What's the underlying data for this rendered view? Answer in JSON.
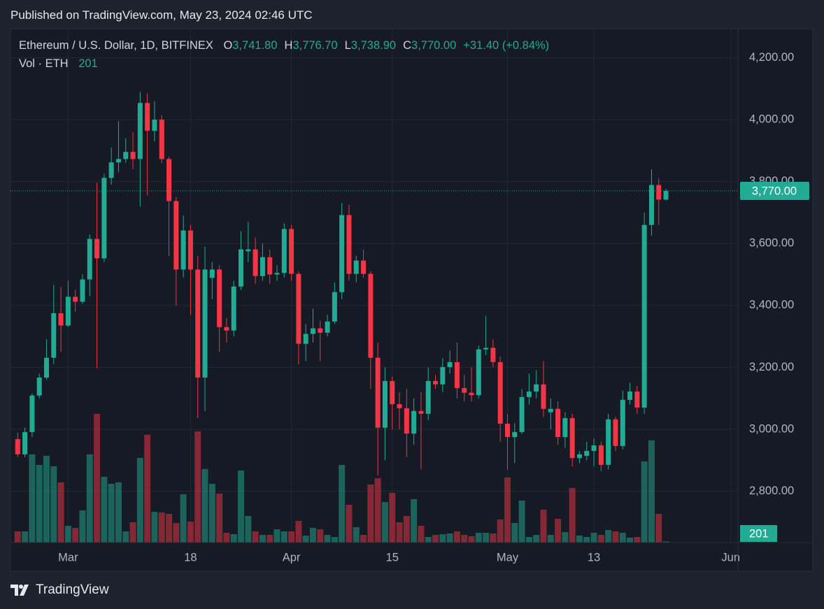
{
  "header": {
    "published": "Published on TradingView.com, May 23, 2024 02:46 UTC"
  },
  "footer": {
    "brand": "TradingView"
  },
  "chart_data": {
    "type": "candlestick",
    "title": "Ethereum / U.S. Dollar, 1D, BITFINEX",
    "legend": [
      {
        "label": "O",
        "value": "3,741.80"
      },
      {
        "label": "H",
        "value": "3,776.70"
      },
      {
        "label": "L",
        "value": "3,738.90"
      },
      {
        "label": "C",
        "value": "3,770.00"
      }
    ],
    "change": "+31.40 (+0.84%)",
    "last_price_label": "3,770.00",
    "up_color": "#22ab94",
    "down_color": "#f23645",
    "grid": true,
    "x": [
      "2024-02-23",
      "2024-02-24",
      "2024-02-25",
      "2024-02-26",
      "2024-02-27",
      "2024-02-28",
      "2024-02-29",
      "2024-03-01",
      "2024-03-02",
      "2024-03-03",
      "2024-03-04",
      "2024-03-05",
      "2024-03-06",
      "2024-03-07",
      "2024-03-08",
      "2024-03-09",
      "2024-03-10",
      "2024-03-11",
      "2024-03-12",
      "2024-03-13",
      "2024-03-14",
      "2024-03-15",
      "2024-03-16",
      "2024-03-17",
      "2024-03-18",
      "2024-03-19",
      "2024-03-20",
      "2024-03-21",
      "2024-03-22",
      "2024-03-23",
      "2024-03-24",
      "2024-03-25",
      "2024-03-26",
      "2024-03-27",
      "2024-03-28",
      "2024-03-29",
      "2024-03-30",
      "2024-03-31",
      "2024-04-01",
      "2024-04-02",
      "2024-04-03",
      "2024-04-04",
      "2024-04-05",
      "2024-04-06",
      "2024-04-07",
      "2024-04-08",
      "2024-04-09",
      "2024-04-10",
      "2024-04-11",
      "2024-04-12",
      "2024-04-13",
      "2024-04-14",
      "2024-04-15",
      "2024-04-16",
      "2024-04-17",
      "2024-04-18",
      "2024-04-19",
      "2024-04-20",
      "2024-04-21",
      "2024-04-22",
      "2024-04-23",
      "2024-04-24",
      "2024-04-25",
      "2024-04-26",
      "2024-04-27",
      "2024-04-28",
      "2024-04-29",
      "2024-04-30",
      "2024-05-01",
      "2024-05-02",
      "2024-05-03",
      "2024-05-04",
      "2024-05-05",
      "2024-05-06",
      "2024-05-07",
      "2024-05-08",
      "2024-05-09",
      "2024-05-10",
      "2024-05-11",
      "2024-05-12",
      "2024-05-13",
      "2024-05-14",
      "2024-05-15",
      "2024-05-16",
      "2024-05-17",
      "2024-05-18",
      "2024-05-19",
      "2024-05-20",
      "2024-05-21",
      "2024-05-22",
      "2024-05-23"
    ],
    "open": [
      2968,
      2919,
      2991,
      3109,
      3167,
      3231,
      3375,
      3335,
      3428,
      3412,
      3484,
      3615,
      3552,
      3812,
      3862,
      3873,
      3896,
      3873,
      4054,
      3964,
      4000,
      3873,
      3737,
      3516,
      3642,
      3516,
      3167,
      3489,
      3516,
      3330,
      3319,
      3461,
      3575,
      3581,
      3495,
      3556,
      3500,
      3505,
      3647,
      3502,
      3276,
      3308,
      3326,
      3312,
      3348,
      3443,
      3692,
      3502,
      3545,
      3502,
      3231,
      3005,
      3156,
      3081,
      3068,
      2986,
      3059,
      3050,
      3156,
      3145,
      3201,
      3217,
      3133,
      3118,
      3110,
      3258,
      3263,
      3217,
      3018,
      2975,
      2991,
      3104,
      3122,
      3145,
      3055,
      3066,
      2975,
      3036,
      2907,
      2914,
      2930,
      2948,
      2885,
      3032,
      2946,
      3095,
      3122,
      3070,
      3660,
      3789,
      3741.8
    ],
    "high": [
      2990,
      3005,
      3115,
      3180,
      3290,
      3466,
      3460,
      3480,
      3450,
      3500,
      3630,
      3796,
      3825,
      3910,
      3995,
      3940,
      3959,
      4090,
      4085,
      4060,
      4015,
      3880,
      3750,
      3690,
      3660,
      3560,
      3590,
      3540,
      3530,
      3360,
      3480,
      3640,
      3670,
      3620,
      3600,
      3580,
      3530,
      3665,
      3660,
      3510,
      3340,
      3390,
      3350,
      3370,
      3475,
      3730,
      3725,
      3560,
      3580,
      3510,
      3280,
      3200,
      3170,
      3120,
      3130,
      3100,
      3120,
      3200,
      3175,
      3230,
      3255,
      3280,
      3175,
      3200,
      3270,
      3365,
      3290,
      3235,
      3050,
      3020,
      3130,
      3180,
      3190,
      3220,
      3100,
      3090,
      3055,
      3050,
      2930,
      2960,
      2970,
      2960,
      3050,
      3040,
      3125,
      3150,
      3140,
      3700,
      3840,
      3810,
      3776.7
    ],
    "low": [
      2910,
      2910,
      2975,
      3100,
      3160,
      3210,
      3250,
      3330,
      3380,
      3405,
      3430,
      3197,
      3540,
      3790,
      3830,
      3860,
      3840,
      3719,
      3755,
      3930,
      3860,
      3560,
      3400,
      3490,
      3370,
      3036,
      3059,
      3420,
      3250,
      3280,
      3300,
      3450,
      3540,
      3470,
      3480,
      3470,
      3480,
      3490,
      3480,
      3210,
      3220,
      3280,
      3220,
      3300,
      3340,
      3420,
      3480,
      3475,
      3490,
      3130,
      2851,
      2900,
      3000,
      3000,
      2910,
      2950,
      2870,
      3030,
      3130,
      3120,
      3180,
      3100,
      3090,
      3090,
      3100,
      3240,
      3200,
      2960,
      2870,
      2890,
      2985,
      3080,
      3100,
      3040,
      3000,
      2950,
      2940,
      2880,
      2890,
      2900,
      2880,
      2865,
      2870,
      2930,
      2935,
      3080,
      3050,
      3050,
      3625,
      3660,
      3738.9
    ],
    "close": [
      2919,
      2991,
      3109,
      3167,
      3231,
      3375,
      3335,
      3428,
      3412,
      3484,
      3615,
      3552,
      3812,
      3862,
      3873,
      3896,
      3873,
      4054,
      3964,
      4000,
      3873,
      3737,
      3516,
      3642,
      3516,
      3167,
      3516,
      3516,
      3330,
      3319,
      3461,
      3581,
      3581,
      3495,
      3556,
      3500,
      3505,
      3647,
      3502,
      3276,
      3308,
      3326,
      3312,
      3348,
      3443,
      3692,
      3502,
      3545,
      3502,
      3231,
      3005,
      3156,
      3081,
      3068,
      2986,
      3059,
      3050,
      3156,
      3145,
      3201,
      3217,
      3133,
      3118,
      3110,
      3258,
      3263,
      3217,
      3018,
      2975,
      2991,
      3104,
      3122,
      3145,
      3066,
      3066,
      2975,
      3036,
      2907,
      2919,
      2930,
      2948,
      2885,
      3032,
      2946,
      3095,
      3122,
      3070,
      3660,
      3789,
      3741.8,
      3770
    ],
    "volume": {
      "name": "Vol · ETH",
      "vlim": [
        0,
        40000
      ],
      "values": [
        2080,
        2080,
        16380,
        14430,
        16120,
        14170,
        11180,
        3120,
        2730,
        5980,
        16380,
        23920,
        12220,
        10920,
        11180,
        2080,
        3770,
        15730,
        20020,
        5720,
        5590,
        5330,
        3640,
        8970,
        3900,
        20670,
        13650,
        10920,
        9100,
        1820,
        1560,
        13390,
        4940,
        2080,
        1430,
        1430,
        2470,
        2080,
        2080,
        4030,
        1300,
        2730,
        2470,
        1430,
        1040,
        14430,
        7020,
        2860,
        1430,
        10790,
        11960,
        7540,
        9230,
        3770,
        4940,
        8060,
        3120,
        1040,
        1430,
        1560,
        1690,
        2080,
        1430,
        1170,
        1820,
        1820,
        1690,
        4290,
        12090,
        3640,
        7800,
        1040,
        1430,
        6110,
        1430,
        4420,
        1950,
        10140,
        1300,
        1040,
        1820,
        1430,
        2340,
        2080,
        1820,
        910,
        1040,
        15080,
        18980,
        5330,
        201
      ]
    },
    "xlim": [
      "2024-02-22",
      "2024-06-02"
    ],
    "xticks": [
      {
        "value": "2024-03-01",
        "label": "Mar"
      },
      {
        "value": "2024-03-18",
        "label": "18"
      },
      {
        "value": "2024-04-01",
        "label": "Apr"
      },
      {
        "value": "2024-04-15",
        "label": "15"
      },
      {
        "value": "2024-05-01",
        "label": "May"
      },
      {
        "value": "2024-05-13",
        "label": "13"
      },
      {
        "value": "2024-06-01",
        "label": "Jun"
      }
    ],
    "ylim": [
      2634,
      4294
    ],
    "yticks": [
      {
        "value": 2800,
        "label": "2,800.00"
      },
      {
        "value": 3000,
        "label": "3,000.00"
      },
      {
        "value": 3200,
        "label": "3,200.00"
      },
      {
        "value": 3400,
        "label": "3,400.00"
      },
      {
        "value": 3600,
        "label": "3,600.00"
      },
      {
        "value": 3800,
        "label": "3,800.00"
      },
      {
        "value": 4000,
        "label": "4,000.00"
      },
      {
        "value": 4200,
        "label": "4,200.00"
      }
    ]
  }
}
